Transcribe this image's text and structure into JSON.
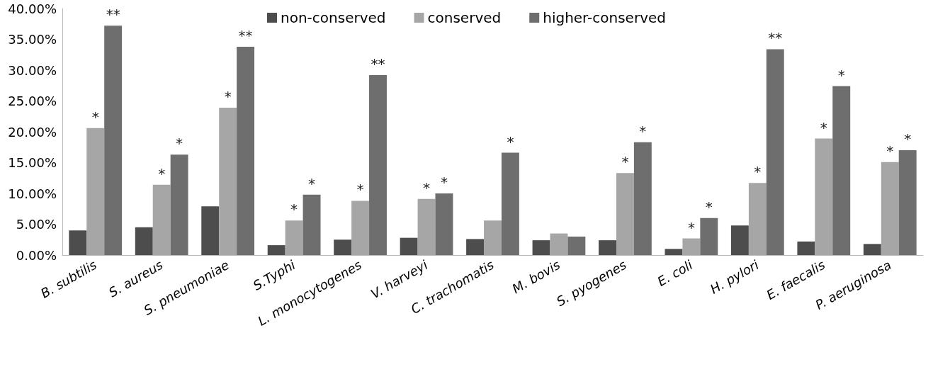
{
  "chart_data": {
    "type": "bar",
    "categories": [
      "B. subtilis",
      "S. aureus",
      "S. pneumoniae",
      "S.Typhi",
      "L. monocytogenes",
      "V. harveyi",
      "C. trachomatis",
      "M. bovis",
      "S. pyogenes",
      "E. coli",
      "H. pylori",
      "E. faecalis",
      "P. aeruginosa"
    ],
    "series": [
      {
        "name": "non-conserved",
        "color": "#4d4d4d",
        "values": [
          4.0,
          4.5,
          7.9,
          1.6,
          2.5,
          2.8,
          2.6,
          2.4,
          2.4,
          1.0,
          4.8,
          2.2,
          1.8
        ]
      },
      {
        "name": "conserved",
        "color": "#a6a6a6",
        "values": [
          20.6,
          11.4,
          23.9,
          5.6,
          8.8,
          9.1,
          5.6,
          3.5,
          13.3,
          2.7,
          11.7,
          18.9,
          15.1
        ],
        "value_labels": [
          "*",
          "*",
          "*",
          "*",
          "*",
          "*",
          null,
          null,
          "*",
          "*",
          "*",
          "*",
          "*"
        ]
      },
      {
        "name": "higher-conserved",
        "color": "#6e6e6e",
        "values": [
          37.2,
          16.3,
          33.8,
          9.8,
          29.2,
          10.0,
          16.6,
          3.0,
          18.3,
          6.0,
          33.4,
          27.4,
          17.0
        ],
        "value_labels": [
          "**",
          "*",
          "**",
          "*",
          "**",
          "*",
          "*",
          null,
          "*",
          "*",
          "**",
          "*",
          "*"
        ]
      }
    ],
    "ylim": [
      0,
      40
    ],
    "yticks": [
      {
        "value": 0,
        "label": "0.00%"
      },
      {
        "value": 5,
        "label": "5.00%"
      },
      {
        "value": 10,
        "label": "10.00%"
      },
      {
        "value": 15,
        "label": "15.00%"
      },
      {
        "value": 20,
        "label": "20.00%"
      },
      {
        "value": 25,
        "label": "25.00%"
      },
      {
        "value": 30,
        "label": "30.00%"
      },
      {
        "value": 35,
        "label": "35.00%"
      },
      {
        "value": 40,
        "label": "40.00%"
      }
    ],
    "grid": false,
    "legend": "top"
  }
}
